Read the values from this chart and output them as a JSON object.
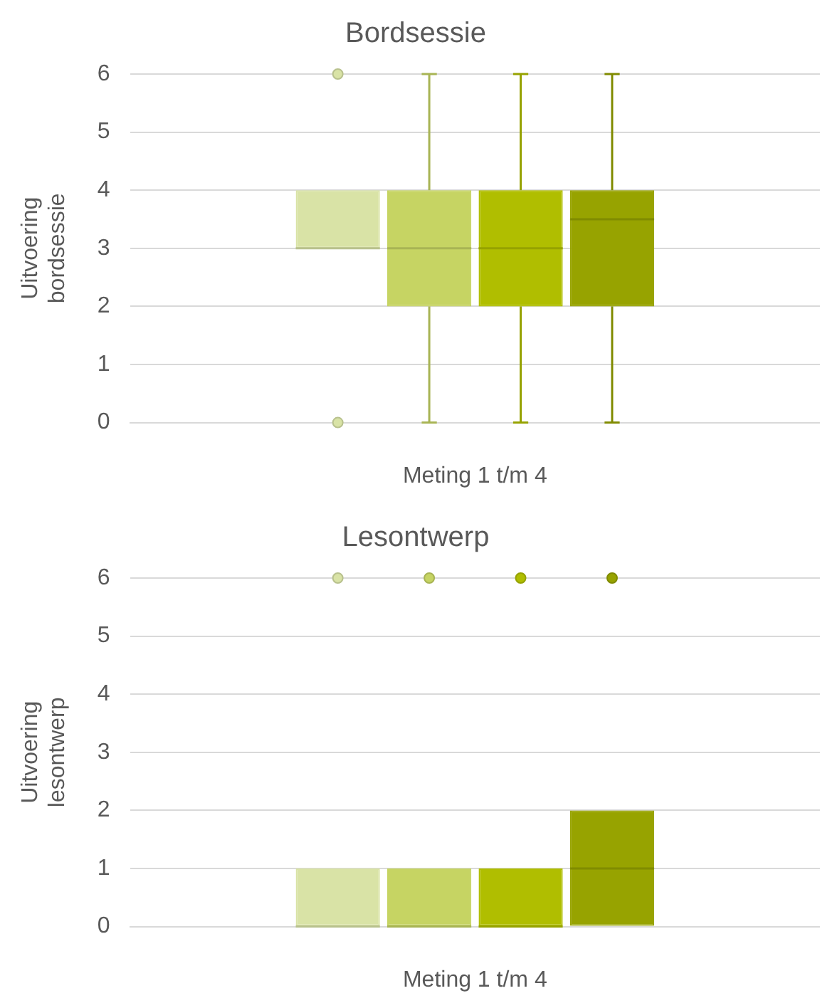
{
  "chart_data": [
    {
      "type": "box",
      "title": "Bordsessie",
      "xlabel": "Meting 1 t/m 4",
      "ylabel": "Uitvoering bordsessie",
      "categories": [
        null
      ],
      "ylim": [
        0,
        6
      ],
      "yticks": [
        0,
        1,
        2,
        3,
        4,
        5,
        6
      ],
      "grid": "y",
      "legend": false,
      "tick_labels": "y",
      "series": [
        {
          "color": "#d9e3a6",
          "boxes": [
            {
              "low": 3,
              "q1": 3,
              "median": 3,
              "q3": 4,
              "high": 4,
              "outliers": [
                6,
                0
              ]
            }
          ]
        },
        {
          "color": "#c6d463",
          "boxes": [
            {
              "low": 0,
              "q1": 2,
              "median": 3,
              "q3": 4,
              "high": 6
            }
          ]
        },
        {
          "color": "#b0be00",
          "boxes": [
            {
              "low": 0,
              "q1": 2,
              "median": 3,
              "q3": 4,
              "high": 6
            }
          ]
        },
        {
          "color": "#97a300",
          "boxes": [
            {
              "low": 0,
              "q1": 2,
              "median": 3.5,
              "q3": 4,
              "high": 6
            }
          ]
        }
      ]
    },
    {
      "type": "box",
      "title": "Lesontwerp",
      "xlabel": "Meting 1 t/m 4",
      "ylabel": "Uitvoering lesontwerp",
      "categories": [
        null
      ],
      "ylim": [
        0,
        6
      ],
      "yticks": [
        0,
        1,
        2,
        3,
        4,
        5,
        6
      ],
      "grid": "y",
      "legend": false,
      "tick_labels": "y",
      "series": [
        {
          "color": "#d9e3a6",
          "boxes": [
            {
              "low": 0,
              "q1": 0,
              "median": 0,
              "q3": 1,
              "high": 1,
              "outliers": [
                6
              ]
            }
          ]
        },
        {
          "color": "#c6d463",
          "boxes": [
            {
              "low": 0,
              "q1": 0,
              "median": 0,
              "q3": 1,
              "high": 1,
              "outliers": [
                6
              ]
            }
          ]
        },
        {
          "color": "#b0be00",
          "boxes": [
            {
              "low": 0,
              "q1": 0,
              "median": 0,
              "q3": 1,
              "high": 1,
              "outliers": [
                6
              ]
            }
          ]
        },
        {
          "color": "#97a300",
          "boxes": [
            {
              "low": 0,
              "q1": 0,
              "median": 1,
              "q3": 2,
              "high": 2,
              "outliers": [
                6
              ]
            }
          ]
        }
      ]
    }
  ]
}
